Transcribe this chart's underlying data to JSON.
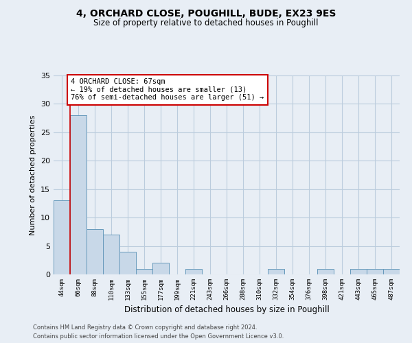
{
  "title1": "4, ORCHARD CLOSE, POUGHILL, BUDE, EX23 9ES",
  "title2": "Size of property relative to detached houses in Poughill",
  "xlabel": "Distribution of detached houses by size in Poughill",
  "ylabel": "Number of detached properties",
  "categories": [
    "44sqm",
    "66sqm",
    "88sqm",
    "110sqm",
    "133sqm",
    "155sqm",
    "177sqm",
    "199sqm",
    "221sqm",
    "243sqm",
    "266sqm",
    "288sqm",
    "310sqm",
    "332sqm",
    "354sqm",
    "376sqm",
    "398sqm",
    "421sqm",
    "443sqm",
    "465sqm",
    "487sqm"
  ],
  "values": [
    13,
    28,
    8,
    7,
    4,
    1,
    2,
    0,
    1,
    0,
    0,
    0,
    0,
    1,
    0,
    0,
    1,
    0,
    1,
    1,
    1
  ],
  "bar_color": "#c8d8e8",
  "bar_edge_color": "#6699bb",
  "vline_x": 0.5,
  "vline_color": "#cc0000",
  "annotation_text": "4 ORCHARD CLOSE: 67sqm\n← 19% of detached houses are smaller (13)\n76% of semi-detached houses are larger (51) →",
  "annotation_box_color": "#ffffff",
  "annotation_box_edge": "#cc0000",
  "ylim": [
    0,
    35
  ],
  "yticks": [
    0,
    5,
    10,
    15,
    20,
    25,
    30,
    35
  ],
  "grid_color": "#bbccdd",
  "bg_color": "#e8eef5",
  "footer1": "Contains HM Land Registry data © Crown copyright and database right 2024.",
  "footer2": "Contains public sector information licensed under the Open Government Licence v3.0."
}
